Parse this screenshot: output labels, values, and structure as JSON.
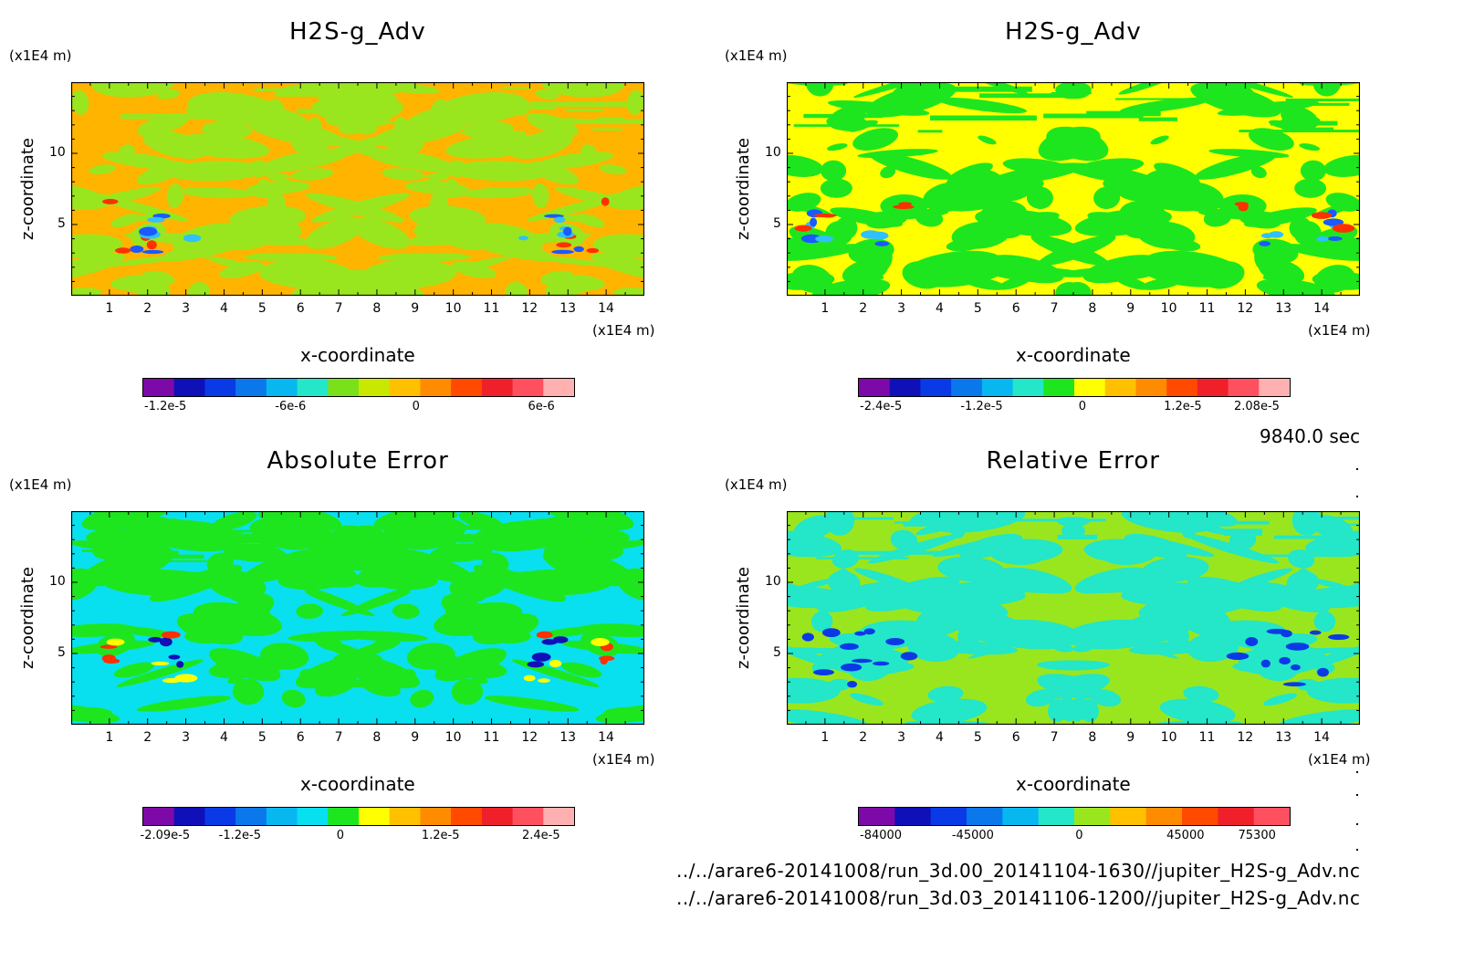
{
  "time_label": "9840.0 sec",
  "file_paths": [
    "../../arare6-20141008/run_3d.00_20141104-1630//jupiter_H2S-g_Adv.nc",
    "../../arare6-20141008/run_3d.03_20141106-1200//jupiter_H2S-g_Adv.nc"
  ],
  "chart_data": [
    {
      "type": "heatmap",
      "title": "H2S-g_Adv",
      "xlabel": "x-coordinate",
      "ylabel": "z-coordinate",
      "x_unit": "(x1E4 m)",
      "y_unit": "(x1E4 m)",
      "xlim": [
        0,
        15
      ],
      "ylim": [
        0,
        15
      ],
      "x_ticks": [
        "1",
        "2",
        "3",
        "4",
        "5",
        "6",
        "7",
        "8",
        "9",
        "10",
        "11",
        "12",
        "13",
        "14"
      ],
      "y_ticks": [
        "5",
        "10"
      ],
      "colorbar_labels": [
        "-1.2e-5",
        "-6e-6",
        "0",
        "6e-6"
      ],
      "colorbar_values": [
        -1.2e-05,
        -6e-06,
        0,
        6e-06
      ],
      "colorbar_colors": [
        "#7d0aa8",
        "#1010b8",
        "#0a3ae6",
        "#0a78ea",
        "#08b6f0",
        "#24e6c8",
        "#7ae01a",
        "#c8e800",
        "#ffc000",
        "#ff8c00",
        "#ff4a00",
        "#f0202a",
        "#ff5060",
        "#ffb0b0"
      ],
      "background_color": "#ffb400",
      "patch_color": "#9ae61e",
      "feature_colors": [
        "#1a5aff",
        "#ff3000",
        "#30c0ff"
      ]
    },
    {
      "type": "heatmap",
      "title": "H2S-g_Adv",
      "xlabel": "x-coordinate",
      "ylabel": "z-coordinate",
      "x_unit": "(x1E4 m)",
      "y_unit": "(x1E4 m)",
      "xlim": [
        0,
        15
      ],
      "ylim": [
        0,
        15
      ],
      "x_ticks": [
        "1",
        "2",
        "3",
        "4",
        "5",
        "6",
        "7",
        "8",
        "9",
        "10",
        "11",
        "12",
        "13",
        "14"
      ],
      "y_ticks": [
        "5",
        "10"
      ],
      "colorbar_labels": [
        "-2.4e-5",
        "-1.2e-5",
        "0",
        "1.2e-5",
        "2.08e-5"
      ],
      "colorbar_values": [
        -2.4e-05,
        -1.2e-05,
        0,
        1.2e-05,
        2.08e-05
      ],
      "colorbar_colors": [
        "#7d0aa8",
        "#1010b8",
        "#0a3ae6",
        "#0a78ea",
        "#08b6f0",
        "#24e6c8",
        "#1ee61e",
        "#ffff00",
        "#ffc000",
        "#ff8c00",
        "#ff4a00",
        "#f0202a",
        "#ff5060",
        "#ffb0b0"
      ],
      "background_color": "#ffff00",
      "patch_color": "#1ee61e",
      "feature_colors": [
        "#1a5aff",
        "#ff3000",
        "#30c0ff"
      ]
    },
    {
      "type": "heatmap",
      "title": "Absolute Error",
      "xlabel": "x-coordinate",
      "ylabel": "z-coordinate",
      "x_unit": "(x1E4 m)",
      "y_unit": "(x1E4 m)",
      "xlim": [
        0,
        15
      ],
      "ylim": [
        0,
        15
      ],
      "x_ticks": [
        "1",
        "2",
        "3",
        "4",
        "5",
        "6",
        "7",
        "8",
        "9",
        "10",
        "11",
        "12",
        "13",
        "14"
      ],
      "y_ticks": [
        "5",
        "10"
      ],
      "colorbar_labels": [
        "-2.09e-5",
        "-1.2e-5",
        "0",
        "1.2e-5",
        "2.4e-5"
      ],
      "colorbar_values": [
        -2.09e-05,
        -1.2e-05,
        0,
        1.2e-05,
        2.4e-05
      ],
      "colorbar_colors": [
        "#7d0aa8",
        "#1010b8",
        "#0a3ae6",
        "#0a78ea",
        "#08b6f0",
        "#08e0f0",
        "#1ee61e",
        "#ffff00",
        "#ffc000",
        "#ff8c00",
        "#ff4a00",
        "#f0202a",
        "#ff5060",
        "#ffb0b0"
      ],
      "background_color": "#08e0f0",
      "patch_color": "#1ee61e",
      "feature_colors": [
        "#1010b8",
        "#ff3000",
        "#ffff00"
      ]
    },
    {
      "type": "heatmap",
      "title": "Relative Error",
      "xlabel": "x-coordinate",
      "ylabel": "z-coordinate",
      "x_unit": "(x1E4 m)",
      "y_unit": "(x1E4 m)",
      "xlim": [
        0,
        15
      ],
      "ylim": [
        0,
        15
      ],
      "x_ticks": [
        "1",
        "2",
        "3",
        "4",
        "5",
        "6",
        "7",
        "8",
        "9",
        "10",
        "11",
        "12",
        "13",
        "14"
      ],
      "y_ticks": [
        "5",
        "10"
      ],
      "colorbar_labels": [
        "-84000",
        "-45000",
        "0",
        "45000",
        "75300"
      ],
      "colorbar_values": [
        -84000,
        -45000,
        0,
        45000,
        75300
      ],
      "colorbar_colors": [
        "#7d0aa8",
        "#1010b8",
        "#0a3ae6",
        "#0a78ea",
        "#08b6f0",
        "#24e6c8",
        "#9ae61e",
        "#ffc000",
        "#ff8c00",
        "#ff4a00",
        "#f0202a",
        "#ff5060"
      ],
      "background_color": "#9ae61e",
      "patch_color": "#24e6c8",
      "feature_colors": [
        "#0a3ae6"
      ]
    }
  ]
}
